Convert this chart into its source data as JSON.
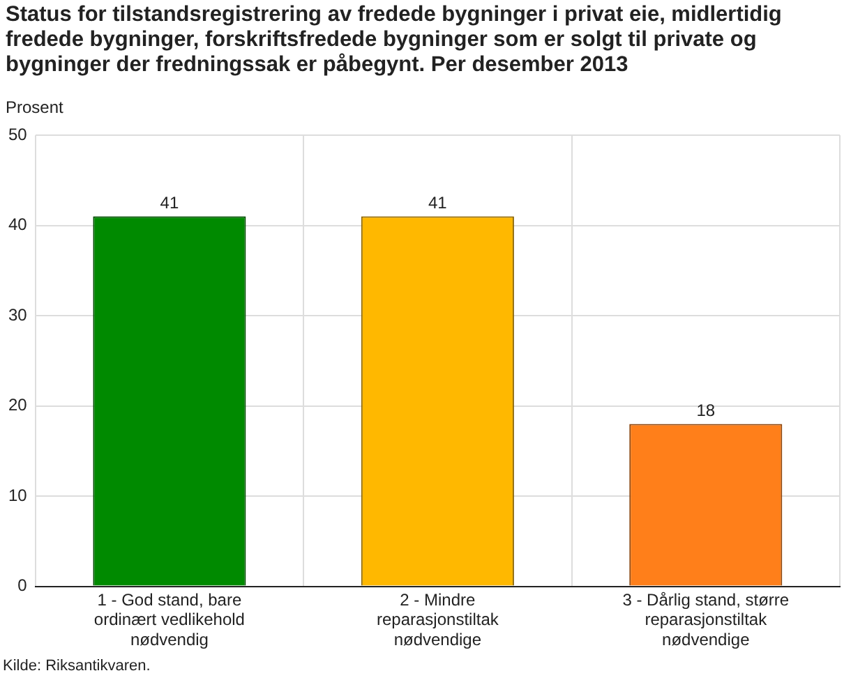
{
  "chart_data": {
    "type": "bar",
    "title": "Status for tilstandsregistrering av fredede bygninger i privat eie, midlertidig fredede bygninger, forskriftsfredede bygninger som er solgt til private og bygninger der fredningssak er påbegynt. Per desember 2013",
    "ylabel": "Prosent",
    "categories": [
      "1 - God stand, bare ordinært vedlikehold nødvendig",
      "2 - Mindre reparasjonstiltak nødvendige",
      "3 - Dårlig stand, større reparasjonstiltak nødvendige"
    ],
    "values": [
      41,
      41,
      18
    ],
    "colors": [
      "#008a00",
      "#ffb800",
      "#ff7f1a"
    ],
    "ylim": [
      0,
      50
    ],
    "yticks": [
      0,
      10,
      20,
      30,
      40,
      50
    ],
    "grid": true,
    "data_labels": true,
    "annotations": [
      "Kilde: Riksantikvaren."
    ]
  }
}
